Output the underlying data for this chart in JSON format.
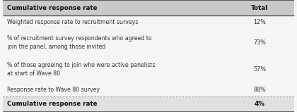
{
  "header": [
    "Cumulative response rate",
    "Total"
  ],
  "rows": [
    [
      "Weighted response rate to recruitment surveys",
      "12%"
    ],
    [
      "% of recruitment survey respondents who agreed to\njoin the panel, among those invited",
      "73%"
    ],
    [
      "% of those agreeing to join who were active panelists\nat start of Wave 80",
      "57%"
    ],
    [
      "Response rate to Wave 80 survey",
      "88%"
    ]
  ],
  "footer": [
    "Cumulative response rate",
    "4%"
  ],
  "header_bg": "#c9c9c9",
  "footer_bg": "#e0e0e0",
  "row_bg": "#f5f5f5",
  "outer_bg": "#f5f5f5",
  "header_text_color": "#111111",
  "row_text_color": "#333333",
  "footer_text_color": "#111111",
  "border_color": "#444444",
  "dashed_color": "#999999",
  "fig_width": 4.2,
  "fig_height": 1.59,
  "dpi": 100
}
